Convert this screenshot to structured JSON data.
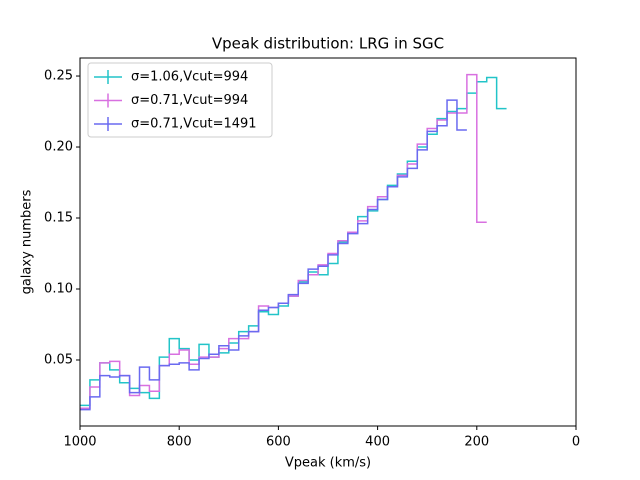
{
  "chart_data": {
    "type": "step",
    "title": "Vpeak distribution: LRG in SGC",
    "xlabel": "Vpeak (km/s)",
    "ylabel": "galaxy numbers",
    "xlim": [
      1000,
      0
    ],
    "xticks": [
      1000,
      800,
      600,
      400,
      200,
      0
    ],
    "ylim": [
      0.0035,
      0.2627
    ],
    "yticks": [
      0.05,
      {
        "value": 0.1,
        "label": "0.10"
      },
      0.15,
      {
        "value": 0.2,
        "label": "0.20"
      },
      0.25
    ],
    "legend": "upper left",
    "x": [
      990,
      970,
      950,
      930,
      910,
      890,
      870,
      850,
      830,
      810,
      790,
      770,
      750,
      730,
      710,
      690,
      670,
      650,
      630,
      610,
      590,
      570,
      550,
      530,
      510,
      490,
      470,
      450,
      430,
      410,
      390,
      370,
      350,
      330,
      310,
      290,
      270,
      250,
      230,
      210,
      190,
      170,
      150
    ],
    "series": [
      {
        "name": "σ=1.06,Vcut=994",
        "color": "#22c4c8",
        "values": [
          0.018,
          0.036,
          0.048,
          0.043,
          0.034,
          0.03,
          0.027,
          0.023,
          0.052,
          0.065,
          0.058,
          0.05,
          0.061,
          0.052,
          0.055,
          0.062,
          0.07,
          0.074,
          0.084,
          0.082,
          0.088,
          0.095,
          0.105,
          0.112,
          0.11,
          0.118,
          0.133,
          0.14,
          0.151,
          0.155,
          0.163,
          0.173,
          0.181,
          0.19,
          0.2,
          0.209,
          0.22,
          0.225,
          0.227,
          0.238,
          0.246,
          0.249,
          0.227
        ]
      },
      {
        "name": "σ=0.71,Vcut=994",
        "color": "#d870e0",
        "values": [
          0.016,
          0.031,
          0.048,
          0.049,
          0.039,
          0.025,
          0.032,
          0.028,
          0.046,
          0.054,
          0.057,
          0.047,
          0.052,
          0.052,
          0.058,
          0.065,
          0.065,
          0.07,
          0.088,
          0.087,
          0.09,
          0.095,
          0.106,
          0.11,
          0.117,
          0.125,
          0.134,
          0.14,
          0.148,
          0.158,
          0.165,
          0.172,
          0.18,
          0.188,
          0.202,
          0.213,
          0.219,
          0.224,
          0.224,
          0.251,
          0.147,
          null,
          null
        ]
      },
      {
        "name": "σ=0.71,Vcut=1491",
        "color": "#6a6af0",
        "values": [
          0.015,
          0.024,
          0.039,
          0.038,
          0.039,
          0.027,
          0.045,
          0.036,
          0.046,
          0.047,
          0.048,
          0.043,
          0.051,
          0.054,
          0.06,
          0.057,
          0.067,
          0.07,
          0.085,
          0.087,
          0.09,
          0.096,
          0.104,
          0.114,
          0.116,
          0.124,
          0.132,
          0.139,
          0.146,
          0.156,
          0.163,
          0.172,
          0.179,
          0.185,
          0.198,
          0.211,
          0.215,
          0.233,
          0.212,
          null,
          null,
          null,
          null
        ]
      }
    ]
  }
}
